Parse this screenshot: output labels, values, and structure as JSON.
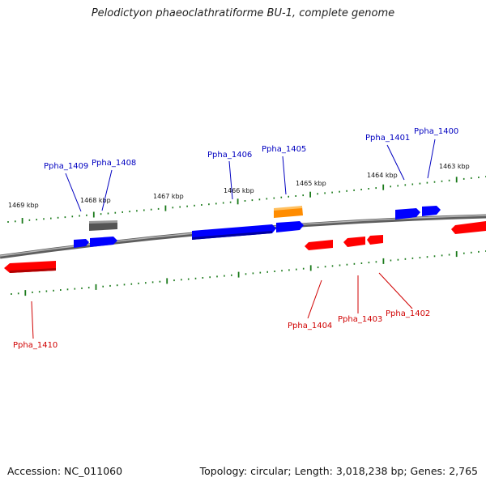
{
  "title": "Pelodictyon phaeoclathratiforme BU-1, complete genome",
  "footer": {
    "accession": "Accession: NC_011060",
    "summary": "Topology: circular; Length: 3,018,238 bp; Genes: 2,765"
  },
  "colors": {
    "forward_gene": "#0000ff",
    "reverse_gene": "#ff0000",
    "rna_gene": "#ff8c00",
    "pseudo_gene": "#666666",
    "tick": "#1a7a1a",
    "backbone": "#808080",
    "forward_label": "#0000c0",
    "reverse_label": "#d00000"
  },
  "scale_labels": [
    "1469 kbp",
    "1468 kbp",
    "1467 kbp",
    "1466 kbp",
    "1465 kbp",
    "1464 kbp",
    "1463 kbp"
  ],
  "genes_forward": [
    "Ppha_1409",
    "Ppha_1408",
    "Ppha_1406",
    "Ppha_1405",
    "Ppha_1401",
    "Ppha_1400"
  ],
  "genes_reverse": [
    "Ppha_1410",
    "Ppha_1404",
    "Ppha_1403",
    "Ppha_1402"
  ]
}
